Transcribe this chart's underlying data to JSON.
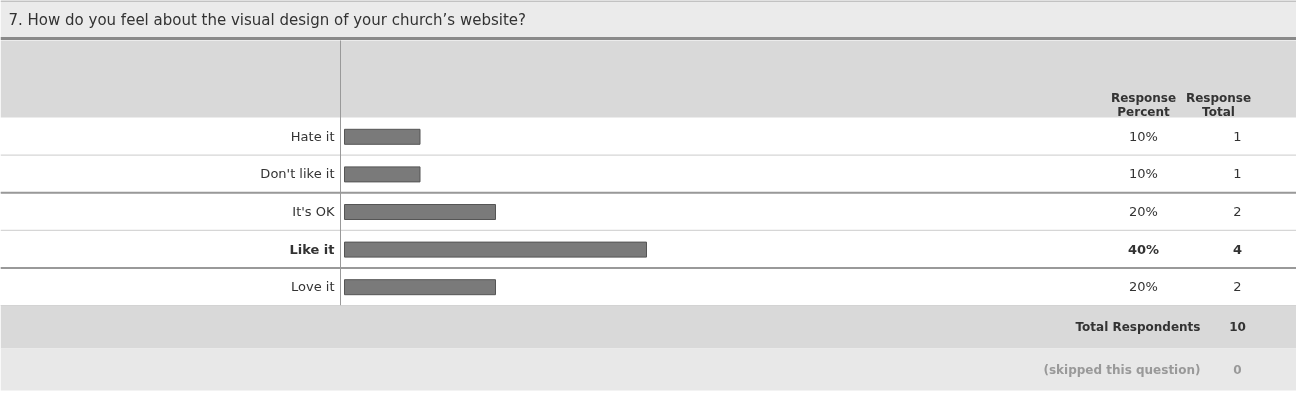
{
  "chart_data": {
    "type": "bar",
    "orientation": "horizontal",
    "title": "7. How do you feel about the visual design of your church’s website?",
    "categories": [
      "Hate it",
      "Don't like it",
      "It's OK",
      "Like it",
      "Love it"
    ],
    "values": [
      10,
      10,
      20,
      40,
      20
    ],
    "value_labels": [
      "10%",
      "10%",
      "20%",
      "40%",
      "20%"
    ],
    "color": "#7a7a7a",
    "annotations": [
      "Response Percent",
      "Response Total",
      "Total Respondents",
      "10",
      "(skipped this question)",
      "0",
      "1",
      "1",
      "2",
      "4",
      "2"
    ]
  }
}
